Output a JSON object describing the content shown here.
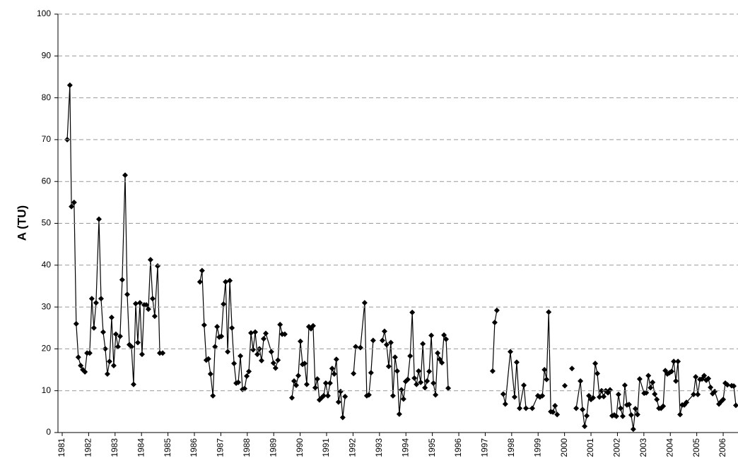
{
  "chart_data": {
    "type": "line",
    "y_label": "A (TU)",
    "xlim": [
      1980.84,
      2006.56
    ],
    "xticks": [
      1981,
      1982,
      1983,
      1984,
      1985,
      1986,
      1987,
      1988,
      1989,
      1990,
      1991,
      1992,
      1993,
      1994,
      1995,
      1996,
      1997,
      1998,
      1999,
      2000,
      2001,
      2002,
      2003,
      2004,
      2005,
      2006
    ],
    "ylim": [
      0,
      100
    ],
    "yticks": [
      0,
      10,
      20,
      30,
      40,
      50,
      60,
      70,
      80,
      90,
      100
    ],
    "grid": true,
    "marker": "diamond",
    "x": [
      1981.19,
      1981.29,
      1981.35,
      1981.45,
      1981.53,
      1981.61,
      1981.7,
      1981.78,
      1981.86,
      1981.94,
      1982.04,
      1982.12,
      1982.2,
      1982.28,
      1982.39,
      1982.47,
      1982.55,
      1982.63,
      1982.71,
      1982.79,
      1982.87,
      1982.95,
      1983.03,
      1983.11,
      1983.19,
      1983.27,
      1983.38,
      1983.46,
      1983.54,
      1983.62,
      1983.7,
      1983.78,
      1983.86,
      1983.94,
      1984.02,
      1984.1,
      1984.18,
      1984.26,
      1984.34,
      1984.42,
      1984.5,
      1984.61,
      1984.69,
      1984.8,
      1985.5,
      1986.21,
      1986.29,
      1986.37,
      1986.45,
      1986.53,
      1986.61,
      1986.7,
      1986.78,
      1986.86,
      1986.94,
      1987.02,
      1987.1,
      1987.18,
      1987.26,
      1987.34,
      1987.42,
      1987.5,
      1987.58,
      1987.66,
      1987.74,
      1987.82,
      1987.9,
      1987.98,
      1988.06,
      1988.14,
      1988.22,
      1988.3,
      1988.38,
      1988.46,
      1988.54,
      1988.62,
      1988.7,
      1988.91,
      1988.99,
      1989.07,
      1989.16,
      1989.24,
      1989.32,
      1989.42,
      1989.56,
      1989.69,
      1989.77,
      1989.85,
      1989.93,
      1990.01,
      1990.09,
      1990.17,
      1990.25,
      1990.33,
      1990.41,
      1990.49,
      1990.57,
      1990.65,
      1990.73,
      1990.81,
      1990.89,
      1990.97,
      1991.05,
      1991.13,
      1991.21,
      1991.29,
      1991.37,
      1991.45,
      1991.53,
      1991.61,
      1991.7,
      1991.86,
      1992.02,
      1992.1,
      1992.28,
      1992.44,
      1992.52,
      1992.6,
      1992.68,
      1992.76,
      1992.94,
      1993.11,
      1993.19,
      1993.27,
      1993.35,
      1993.43,
      1993.51,
      1993.59,
      1993.67,
      1993.75,
      1993.83,
      1993.91,
      1993.99,
      1994.07,
      1994.16,
      1994.24,
      1994.32,
      1994.4,
      1994.48,
      1994.56,
      1994.64,
      1994.72,
      1994.8,
      1994.88,
      1994.96,
      1995.04,
      1995.12,
      1995.2,
      1995.28,
      1995.36,
      1995.44,
      1995.52,
      1995.6,
      1996.5,
      1997.28,
      1997.36,
      1997.44,
      1997.56,
      1997.68,
      1997.76,
      1997.95,
      1998.11,
      1998.19,
      1998.3,
      1998.46,
      1998.54,
      1998.78,
      1998.99,
      1999.07,
      1999.16,
      1999.24,
      1999.32,
      1999.4,
      1999.48,
      1999.56,
      1999.64,
      1999.72,
      1999.86,
      2000.01,
      2000.15,
      2000.28,
      2000.36,
      2000.44,
      2000.6,
      2000.68,
      2000.76,
      2000.84,
      2000.92,
      2001.0,
      2001.08,
      2001.16,
      2001.24,
      2001.32,
      2001.4,
      2001.48,
      2001.56,
      2001.64,
      2001.72,
      2001.8,
      2001.88,
      2001.96,
      2002.04,
      2002.12,
      2002.2,
      2002.28,
      2002.36,
      2002.44,
      2002.52,
      2002.6,
      2002.68,
      2002.76,
      2002.84,
      2003.01,
      2003.09,
      2003.17,
      2003.25,
      2003.33,
      2003.41,
      2003.49,
      2003.57,
      2003.65,
      2003.73,
      2003.81,
      2003.89,
      2003.97,
      2004.05,
      2004.13,
      2004.21,
      2004.29,
      2004.37,
      2004.45,
      2004.53,
      2004.61,
      2004.88,
      2004.96,
      2005.04,
      2005.12,
      2005.2,
      2005.28,
      2005.36,
      2005.44,
      2005.52,
      2005.6,
      2005.68,
      2005.84,
      2005.92,
      2006.0,
      2006.08,
      2006.16,
      2006.32,
      2006.4,
      2006.48
    ],
    "series": [
      {
        "color": "#000000",
        "values": [
          70,
          83,
          54,
          55,
          26,
          18,
          16,
          15,
          14.5,
          19,
          19,
          32,
          25,
          31,
          51,
          32,
          24,
          20,
          14,
          17,
          27.5,
          16,
          23.5,
          20.5,
          23,
          36.5,
          61.5,
          33,
          21,
          20.5,
          11.5,
          30.8,
          21.5,
          31,
          18.7,
          30.5,
          30.5,
          29.5,
          41.3,
          32,
          27.8,
          39.8,
          19,
          19,
          null,
          36,
          38.7,
          25.7,
          17.3,
          17.6,
          14,
          8.8,
          20.5,
          25.3,
          22.8,
          23,
          30.7,
          36,
          19.3,
          36.3,
          25,
          16.5,
          11.8,
          12,
          18.3,
          10.3,
          10.5,
          13.5,
          14.6,
          23.8,
          19.8,
          24,
          18.7,
          20,
          17.2,
          22.4,
          23.7,
          19.3,
          16.6,
          15.4,
          17.3,
          25.8,
          23.5,
          23.5,
          null,
          8.3,
          12.3,
          11.3,
          13.6,
          21.8,
          16.3,
          16.5,
          11.5,
          25.3,
          24.8,
          25.5,
          10.7,
          12.8,
          7.8,
          8.3,
          8.8,
          11.8,
          8.8,
          11.8,
          15.3,
          14,
          17.5,
          7.3,
          9.8,
          3.6,
          8.6,
          null,
          14.1,
          20.5,
          20.3,
          31,
          8.8,
          9,
          14.3,
          22,
          null,
          22,
          24.2,
          21,
          15.8,
          21.5,
          8.8,
          18,
          14.7,
          4.4,
          10.2,
          8,
          12.2,
          12.7,
          18.3,
          28.7,
          13,
          11.5,
          14.7,
          12,
          21.2,
          10.7,
          12.3,
          14.6,
          23.2,
          11.8,
          9,
          19,
          17.5,
          16.7,
          23.3,
          22.3,
          10.6,
          null,
          14.7,
          26.3,
          29.2,
          null,
          9.2,
          6.8,
          19.3,
          8.5,
          16.8,
          5.8,
          11.3,
          5.8,
          5.8,
          8.8,
          8.5,
          8.8,
          15,
          12.7,
          28.8,
          5,
          4.9,
          6.4,
          4.3,
          null,
          11.2,
          null,
          15.3,
          null,
          5.8,
          12.3,
          5.5,
          1.5,
          4,
          8.8,
          7.9,
          8.3,
          16.5,
          14.1,
          8.5,
          10,
          8.6,
          10,
          9.5,
          10.2,
          4,
          4.2,
          3.9,
          9.1,
          5.8,
          3.9,
          11.3,
          6.6,
          6.7,
          4.2,
          0.8,
          5.7,
          4.3,
          12.8,
          9.4,
          9.5,
          13.6,
          10.7,
          12,
          9.2,
          7.9,
          5.8,
          5.8,
          6.3,
          14.8,
          14,
          14.3,
          14.6,
          17,
          12.3,
          17,
          4.3,
          6.6,
          6.6,
          7.2,
          9.1,
          13.3,
          9.1,
          12.7,
          12.8,
          13.6,
          12.5,
          12.9,
          10.8,
          9.3,
          9.8,
          6.8,
          7.4,
          7.9,
          11.8,
          11.4,
          11.2,
          11.1,
          6.5
        ]
      }
    ]
  }
}
